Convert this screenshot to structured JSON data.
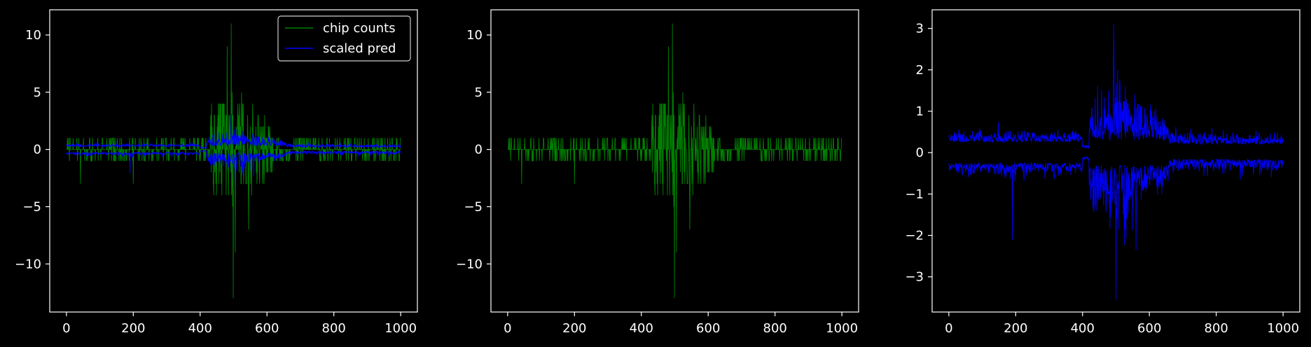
{
  "colors": {
    "background": "#000000",
    "axes": "#ffffff",
    "chip": "#008000",
    "pred": "#0000ff"
  },
  "chart_data": [
    {
      "type": "line",
      "xlim": [
        -50,
        1050
      ],
      "ylim": [
        -14.2,
        12.2
      ],
      "xticks": [
        0,
        200,
        400,
        600,
        800,
        1000
      ],
      "yticks": [
        -10,
        -5,
        0,
        5,
        10
      ],
      "legend": "top-right",
      "series": [
        {
          "name": "chip counts",
          "color": "#008000",
          "kind": "counts"
        },
        {
          "name": "scaled pred",
          "color": "#0000ff",
          "kind": "pred"
        }
      ]
    },
    {
      "type": "line",
      "xlim": [
        -50,
        1050
      ],
      "ylim": [
        -14.2,
        12.2
      ],
      "xticks": [
        0,
        200,
        400,
        600,
        800,
        1000
      ],
      "yticks": [
        -10,
        -5,
        0,
        5,
        10
      ],
      "series": [
        {
          "color": "#008000",
          "kind": "counts"
        }
      ]
    },
    {
      "type": "line",
      "xlim": [
        -50,
        1050
      ],
      "ylim": [
        -3.85,
        3.45
      ],
      "xticks": [
        0,
        200,
        400,
        600,
        800,
        1000
      ],
      "yticks": [
        -3,
        -2,
        -1,
        0,
        1,
        2,
        3
      ],
      "series": [
        {
          "color": "#0000ff",
          "kind": "pred"
        }
      ]
    }
  ]
}
